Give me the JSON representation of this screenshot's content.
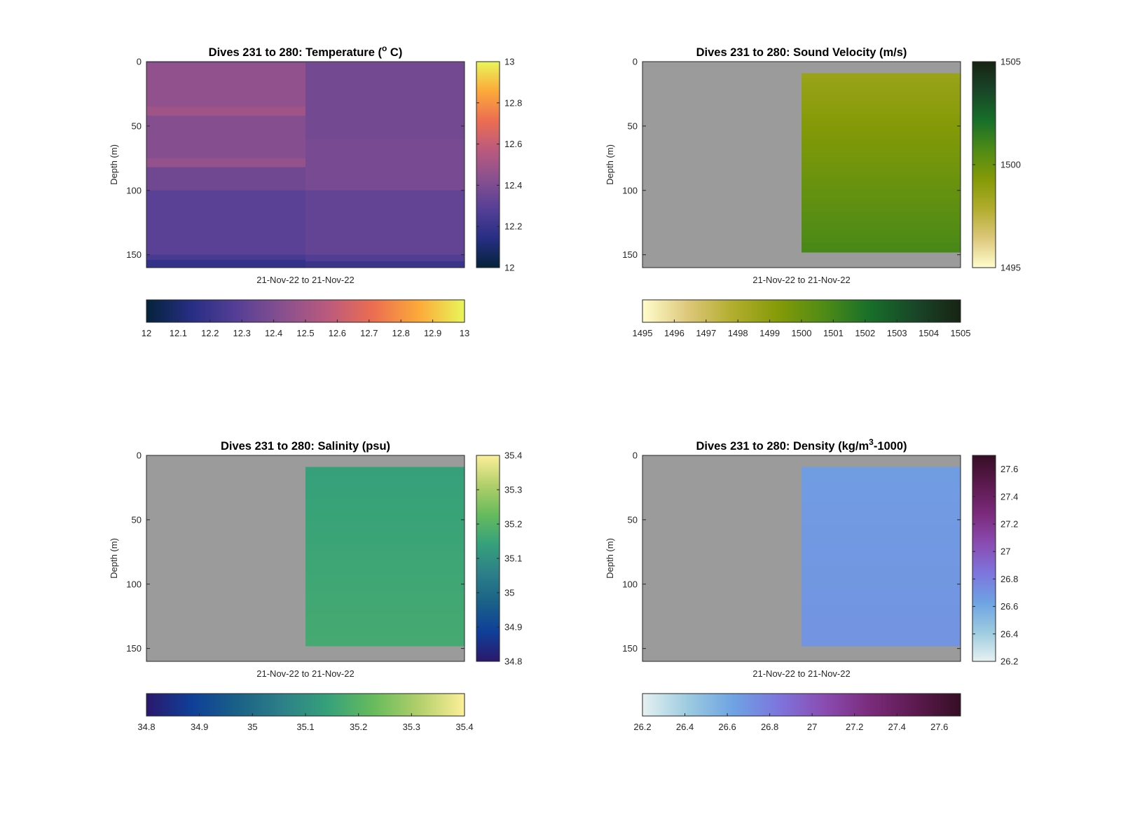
{
  "figure": {
    "panels": [
      {
        "title": "Dives 231 to 280: Temperature (",
        "title_sup": "o",
        "title_tail": " C)",
        "ylabel": "Depth (m)",
        "xlabel": "21-Nov-22 to 21-Nov-22",
        "yticks": [
          "0",
          "50",
          "100",
          "150"
        ],
        "cb_side_ticks": [
          "12",
          "12.2",
          "12.4",
          "12.6",
          "12.8",
          "13"
        ],
        "cb_bottom_ticks": [
          "12",
          "12.1",
          "12.2",
          "12.3",
          "12.4",
          "12.5",
          "12.6",
          "12.7",
          "12.8",
          "12.9",
          "13"
        ]
      },
      {
        "title": "Dives 231 to 280: Sound Velocity (m/s)",
        "title_sup": "",
        "title_tail": "",
        "ylabel": "Depth (m)",
        "xlabel": "21-Nov-22 to 21-Nov-22",
        "yticks": [
          "0",
          "50",
          "100",
          "150"
        ],
        "cb_side_ticks": [
          "1495",
          "1500",
          "1505"
        ],
        "cb_bottom_ticks": [
          "1495",
          "1496",
          "1497",
          "1498",
          "1499",
          "1500",
          "1501",
          "1502",
          "1503",
          "1504",
          "1505"
        ]
      },
      {
        "title": "Dives 231 to 280: Salinity (psu)",
        "title_sup": "",
        "title_tail": "",
        "ylabel": "Depth (m)",
        "xlabel": "21-Nov-22 to 21-Nov-22",
        "yticks": [
          "0",
          "50",
          "100",
          "150"
        ],
        "cb_side_ticks": [
          "34.8",
          "34.9",
          "35",
          "35.1",
          "35.2",
          "35.3",
          "35.4"
        ],
        "cb_bottom_ticks": [
          "34.8",
          "34.9",
          "35",
          "35.1",
          "35.2",
          "35.3",
          "35.4"
        ]
      },
      {
        "title": "Dives 231 to 280: Density (kg/m",
        "title_sup": "3",
        "title_tail": "-1000)",
        "ylabel": "Depth (m)",
        "xlabel": "21-Nov-22 to 21-Nov-22",
        "yticks": [
          "0",
          "50",
          "100",
          "150"
        ],
        "cb_side_ticks": [
          "26.2",
          "26.4",
          "26.6",
          "26.8",
          "27",
          "27.2",
          "27.4",
          "27.6"
        ],
        "cb_bottom_ticks": [
          "26.2",
          "26.4",
          "26.6",
          "26.8",
          "27",
          "27.2",
          "27.4",
          "27.6"
        ]
      }
    ]
  },
  "colors": {
    "missing": "#9b9b9b",
    "thermal": [
      "#04233a",
      "#272e84",
      "#563f96",
      "#88508f",
      "#bb5a7d",
      "#ec6e51",
      "#fcaa3a",
      "#e8f65a"
    ],
    "speed": [
      "#fffdcd",
      "#ddc77a",
      "#b1ad2d",
      "#849a07",
      "#4f8b16",
      "#176f29",
      "#194628",
      "#172313"
    ],
    "haline": [
      "#2a186c",
      "#0f3f98",
      "#1a6187",
      "#2d8088",
      "#36a17a",
      "#67bb5c",
      "#b2cf6b",
      "#fdef9a"
    ],
    "dense": [
      "#e6f1f1",
      "#9ccbe0",
      "#6ea3e3",
      "#7d75dd",
      "#8a4cb2",
      "#7b2b7c",
      "#5c1a4f",
      "#360e24"
    ]
  },
  "chart_data": [
    {
      "type": "heatmap",
      "title": "Dives 231 to 280: Temperature (o C)",
      "xlabel": "21-Nov-22 to 21-Nov-22",
      "ylabel": "Depth (m)",
      "ylim": [
        0,
        160
      ],
      "y_reversed": true,
      "colormap": "thermal",
      "clim": [
        12,
        13
      ],
      "profiles": [
        {
          "column": 1,
          "segments": [
            {
              "depth": [
                0,
                1
              ],
              "value": 12.38
            },
            {
              "depth": [
                1,
                30
              ],
              "value": 12.45
            },
            {
              "depth": [
                30,
                35
              ],
              "value": 12.45
            },
            {
              "depth": [
                35,
                42
              ],
              "value": 12.49
            },
            {
              "depth": [
                42,
                75
              ],
              "value": 12.42
            },
            {
              "depth": [
                75,
                82
              ],
              "value": 12.46
            },
            {
              "depth": [
                82,
                100
              ],
              "value": 12.36
            },
            {
              "depth": [
                100,
                150
              ],
              "value": 12.3
            },
            {
              "depth": [
                150,
                154
              ],
              "value": 12.24
            },
            {
              "depth": [
                154,
                160
              ],
              "value": 12.18
            }
          ]
        },
        {
          "column": 2,
          "segments": [
            {
              "depth": [
                0,
                1
              ],
              "value": 12.38
            },
            {
              "depth": [
                1,
                60
              ],
              "value": 12.37
            },
            {
              "depth": [
                60,
                100
              ],
              "value": 12.38
            },
            {
              "depth": [
                100,
                150
              ],
              "value": 12.32
            },
            {
              "depth": [
                150,
                155
              ],
              "value": 12.27
            },
            {
              "depth": [
                155,
                160
              ],
              "value": 12.2
            }
          ]
        }
      ]
    },
    {
      "type": "heatmap",
      "title": "Dives 231 to 280: Sound Velocity (m/s)",
      "xlabel": "21-Nov-22 to 21-Nov-22",
      "ylabel": "Depth (m)",
      "ylim": [
        0,
        160
      ],
      "y_reversed": true,
      "colormap": "speed",
      "clim": [
        1495,
        1505
      ],
      "profiles": [
        {
          "column": 1,
          "segments": []
        },
        {
          "column": 2,
          "depth_range": [
            9,
            148
          ],
          "value_top": 1498.6,
          "value_bottom": 1500.9
        }
      ]
    },
    {
      "type": "heatmap",
      "title": "Dives 231 to 280: Salinity (psu)",
      "xlabel": "21-Nov-22 to 21-Nov-22",
      "ylabel": "Depth (m)",
      "ylim": [
        0,
        160
      ],
      "y_reversed": true,
      "colormap": "haline",
      "clim": [
        34.8,
        35.4
      ],
      "profiles": [
        {
          "column": 1,
          "segments": []
        },
        {
          "column": 2,
          "depth_range": [
            9,
            148
          ],
          "value_top": 35.14,
          "value_bottom": 35.17
        }
      ]
    },
    {
      "type": "heatmap",
      "title": "Dives 231 to 280: Density (kg/m3-1000)",
      "xlabel": "21-Nov-22 to 21-Nov-22",
      "ylabel": "Depth (m)",
      "ylim": [
        0,
        160
      ],
      "y_reversed": true,
      "colormap": "dense",
      "clim": [
        26.2,
        27.7
      ],
      "profiles": [
        {
          "column": 1,
          "segments": []
        },
        {
          "column": 2,
          "depth_range": [
            9,
            148
          ],
          "value_top": 26.66,
          "value_bottom": 26.7
        }
      ]
    }
  ]
}
